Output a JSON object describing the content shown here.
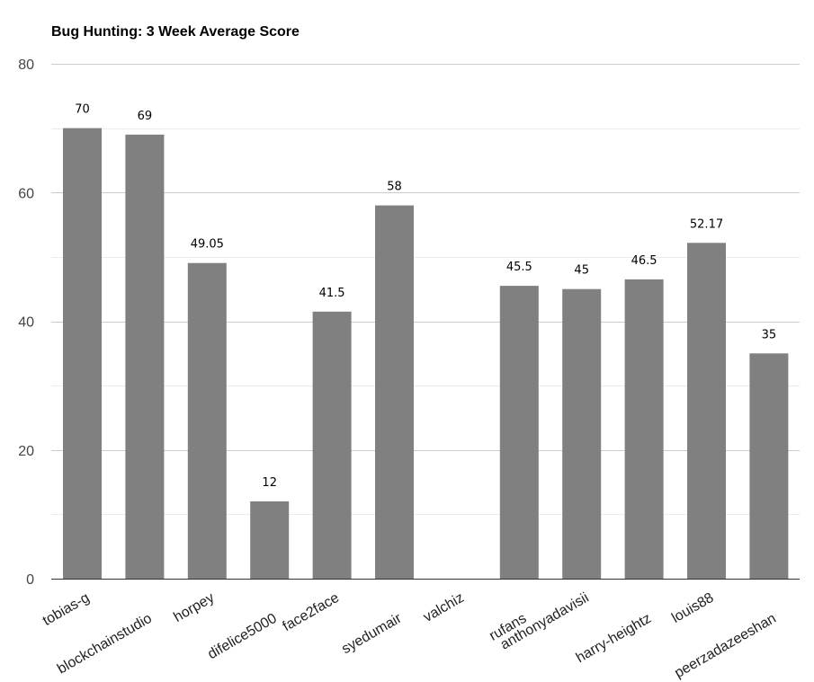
{
  "chart_data": {
    "type": "bar",
    "title": "Bug Hunting: 3 Week Average Score",
    "xlabel": "",
    "ylabel": "",
    "ylim": [
      0,
      80
    ],
    "yticks": [
      0,
      20,
      40,
      60,
      80
    ],
    "minor_gridlines": [
      10,
      30,
      50,
      70
    ],
    "grid": true,
    "legend": "none",
    "bar_color": "#808080",
    "categories": [
      "tobias-g",
      "blockchainstudio",
      "horpey",
      "difelice5000",
      "face2face",
      "syedumair",
      "valchiz",
      "rufans",
      "anthonyadavisii",
      "harry-heightz",
      "louis88",
      "peerzadazeeshan"
    ],
    "values": [
      70,
      69,
      49.05,
      12,
      41.5,
      58,
      null,
      45.5,
      45,
      46.5,
      52.17,
      35
    ],
    "data_labels": [
      "70",
      "69",
      "49.05",
      "12",
      "41.5",
      "58",
      "",
      "45.5",
      "45",
      "46.5",
      "52.17",
      "35"
    ]
  }
}
